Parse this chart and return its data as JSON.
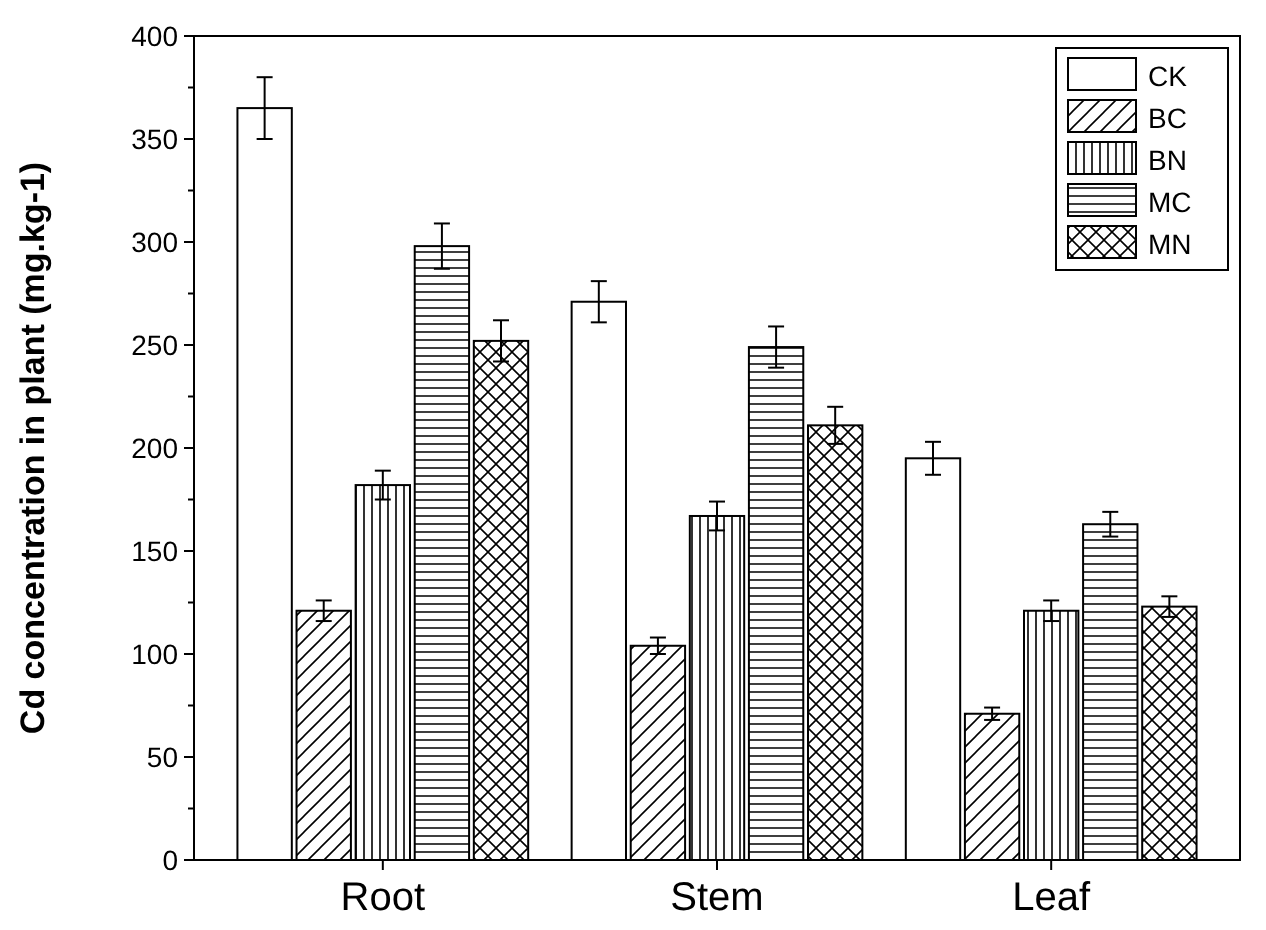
{
  "chart_data": {
    "type": "bar",
    "ylabel": "Cd concentration in plant (mg.kg-1)",
    "categories": [
      "Root",
      "Stem",
      "Leaf"
    ],
    "ylim": [
      0,
      400
    ],
    "yticks": [
      0,
      50,
      100,
      150,
      200,
      250,
      300,
      350,
      400
    ],
    "grid": false,
    "legend": "top right",
    "series": [
      {
        "name": "CK",
        "color": "#000000",
        "values": [
          365,
          271,
          195
        ],
        "errors": [
          15,
          10,
          8
        ]
      },
      {
        "name": "BC",
        "color": "#000000",
        "values": [
          121,
          104,
          71
        ],
        "errors": [
          5,
          4,
          3
        ]
      },
      {
        "name": "BN",
        "color": "#000000",
        "values": [
          182,
          167,
          121
        ],
        "errors": [
          7,
          7,
          5
        ]
      },
      {
        "name": "MC",
        "color": "#000000",
        "values": [
          298,
          249,
          163
        ],
        "errors": [
          11,
          10,
          6
        ]
      },
      {
        "name": "MN",
        "color": "#000000",
        "values": [
          252,
          211,
          123
        ],
        "errors": [
          10,
          9,
          5
        ]
      }
    ]
  }
}
